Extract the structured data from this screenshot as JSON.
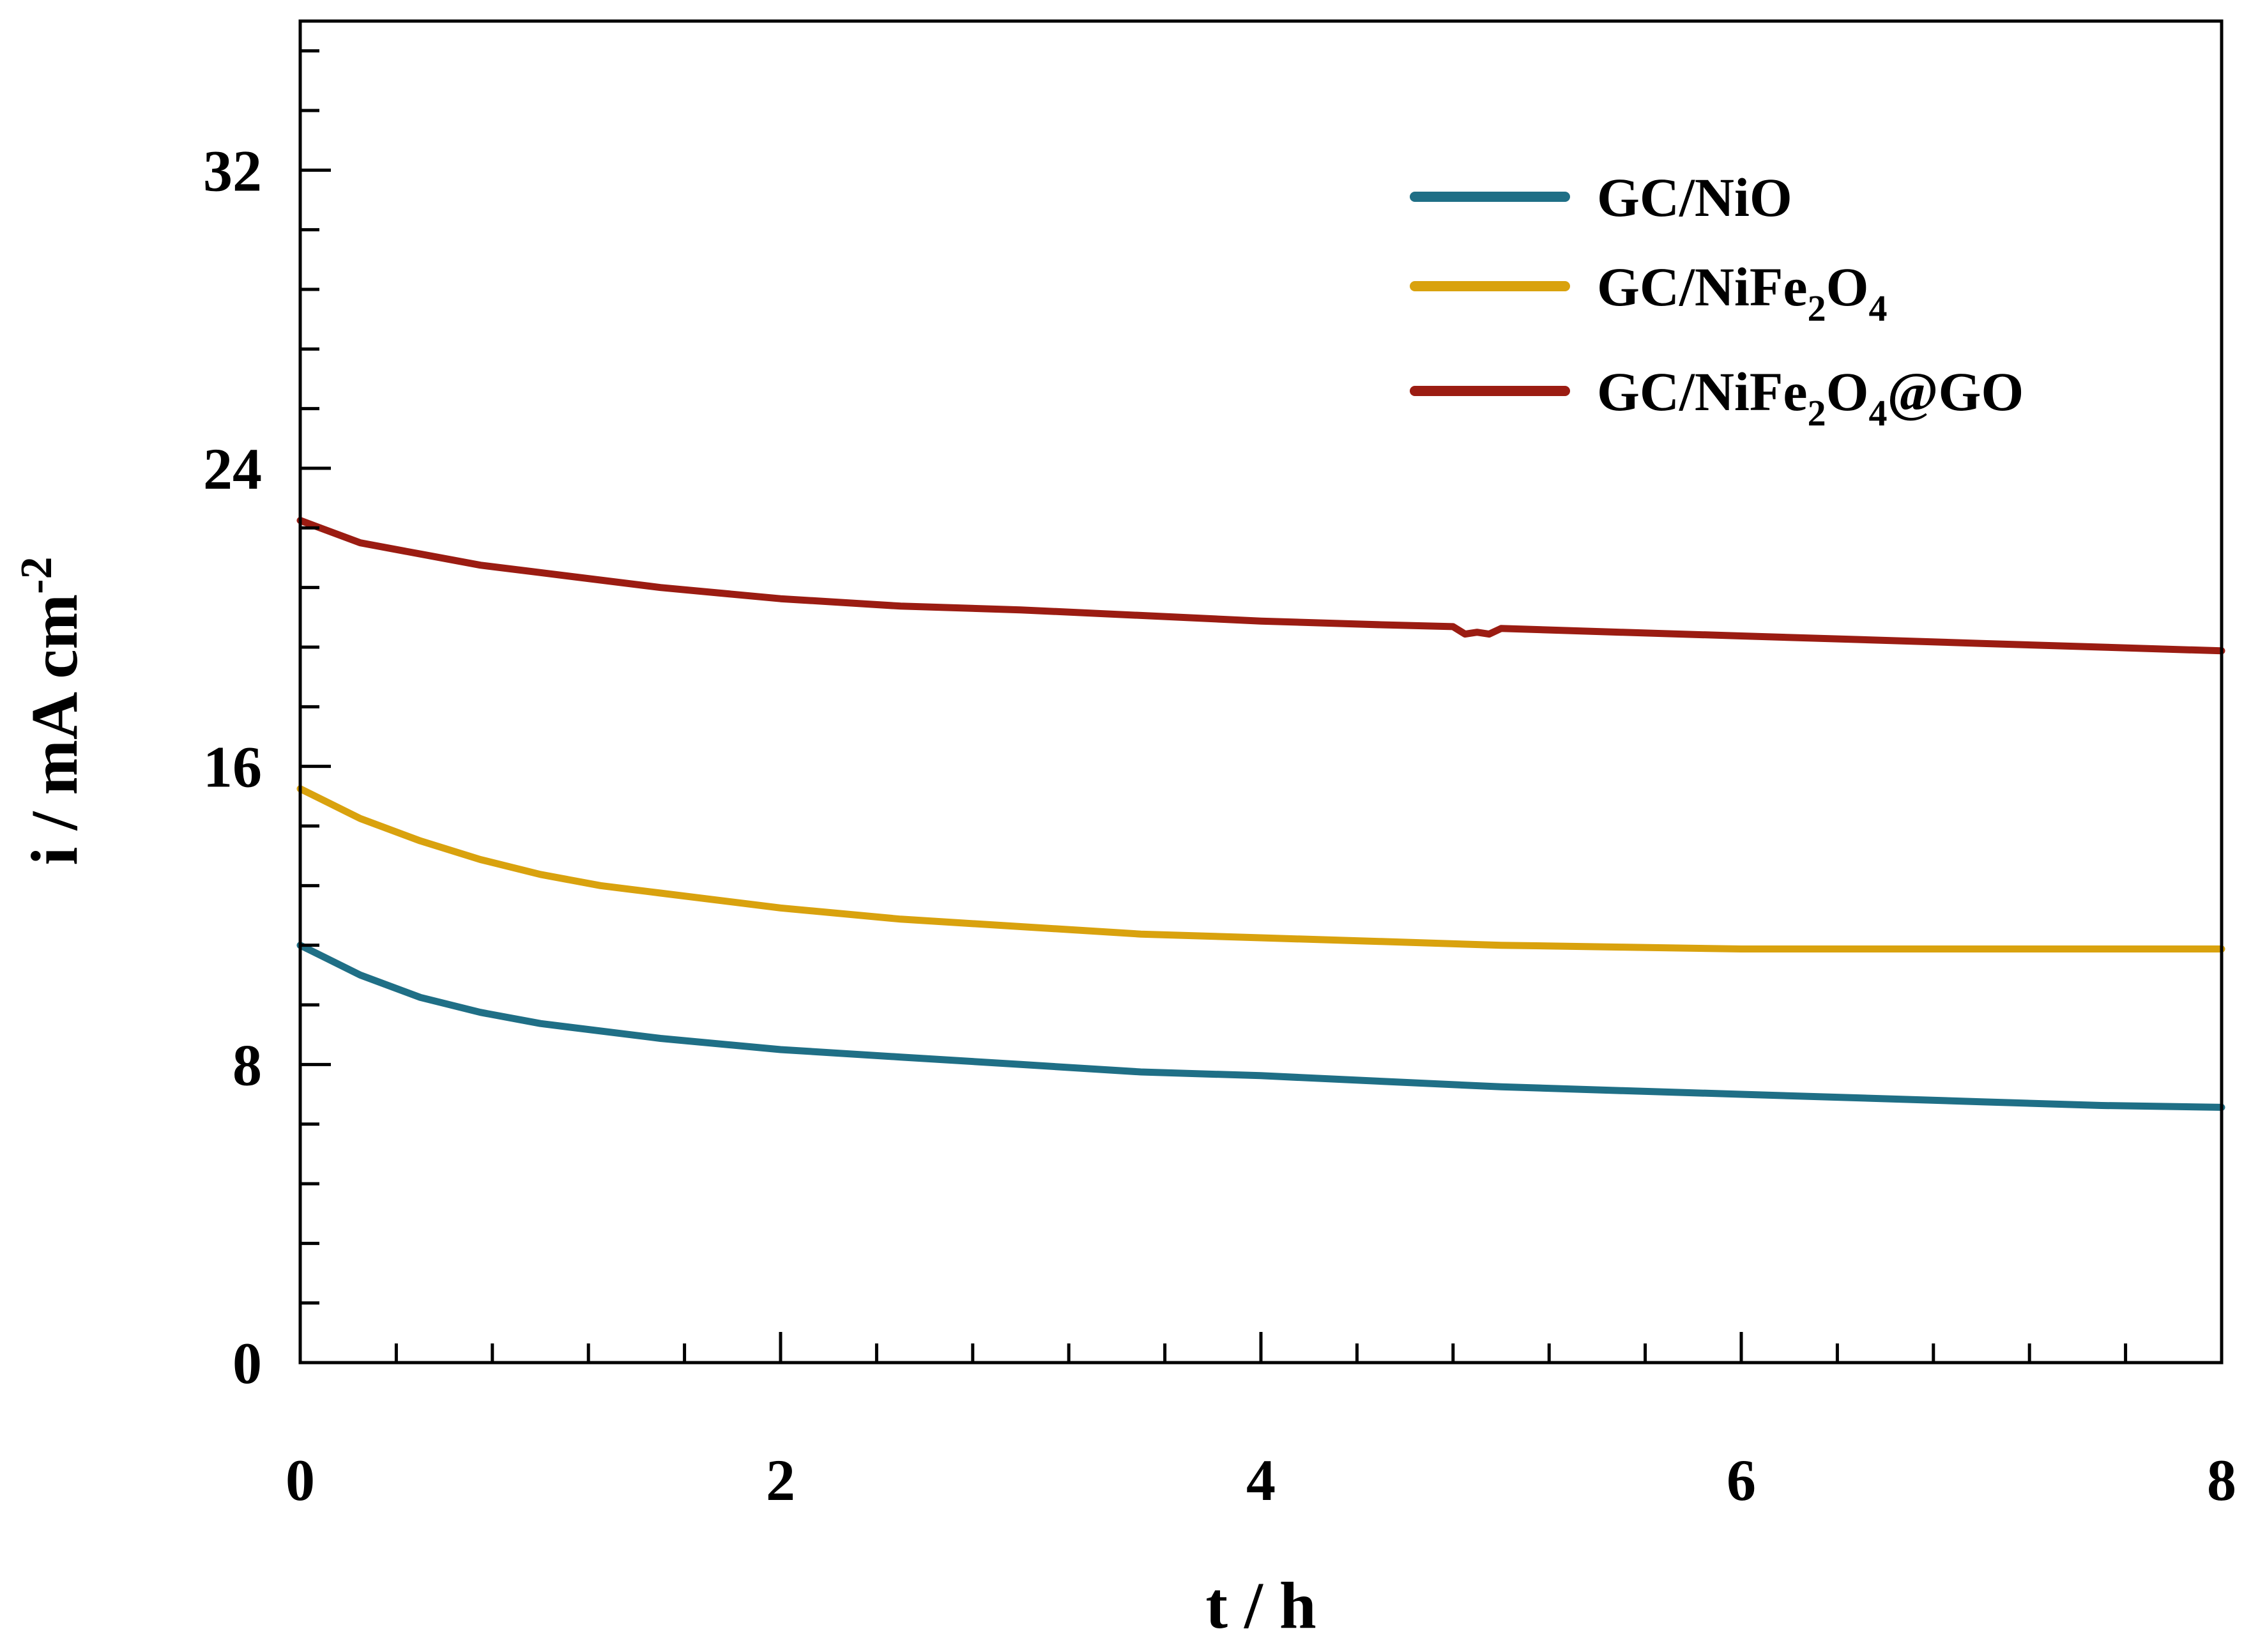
{
  "chart_data": {
    "type": "line",
    "title": "",
    "xlabel": "t / h",
    "ylabel": {
      "main": "i / mA cm",
      "superscript": "-2"
    },
    "xlim": [
      0,
      8
    ],
    "ylim": [
      0,
      36
    ],
    "xticks": [
      0,
      2,
      4,
      6,
      8
    ],
    "xtick_labels": [
      "0",
      "2",
      "4",
      "6",
      "8"
    ],
    "x_minor_step": 0.4,
    "yticks": [
      0,
      8,
      16,
      24,
      32
    ],
    "ytick_labels": [
      "0",
      "8",
      "16",
      "24",
      "32"
    ],
    "y_minor_step": 1.6,
    "grid": false,
    "legend_position": "top-right",
    "series": [
      {
        "name": "GC/NiO",
        "legend": {
          "parts": [
            {
              "t": "GC/NiO"
            }
          ]
        },
        "color": "#1f6f86",
        "x": [
          0,
          0.25,
          0.5,
          0.75,
          1.0,
          1.5,
          2.0,
          2.5,
          3.0,
          3.5,
          4.0,
          4.5,
          5.0,
          5.5,
          6.0,
          6.5,
          7.0,
          7.5,
          8.0
        ],
        "y": [
          11.2,
          10.4,
          9.8,
          9.4,
          9.1,
          8.7,
          8.4,
          8.2,
          8.0,
          7.8,
          7.7,
          7.55,
          7.4,
          7.3,
          7.2,
          7.1,
          7.0,
          6.9,
          6.85
        ]
      },
      {
        "name": "GC/NiFe2O4",
        "legend": {
          "parts": [
            {
              "t": "GC/NiFe"
            },
            {
              "t": "2",
              "sub": true
            },
            {
              "t": "O"
            },
            {
              "t": "4",
              "sub": true
            }
          ]
        },
        "color": "#d9a20e",
        "x": [
          0,
          0.25,
          0.5,
          0.75,
          1.0,
          1.25,
          1.5,
          2.0,
          2.5,
          3.0,
          3.5,
          4.0,
          4.5,
          5.0,
          5.5,
          6.0,
          6.5,
          7.0,
          7.5,
          8.0
        ],
        "y": [
          15.4,
          14.6,
          14.0,
          13.5,
          13.1,
          12.8,
          12.6,
          12.2,
          11.9,
          11.7,
          11.5,
          11.4,
          11.3,
          11.2,
          11.15,
          11.1,
          11.1,
          11.1,
          11.1,
          11.1
        ]
      },
      {
        "name": "GC/NiFe2O4@GO",
        "legend": {
          "parts": [
            {
              "t": "GC/NiFe"
            },
            {
              "t": "2",
              "sub": true
            },
            {
              "t": "O"
            },
            {
              "t": "4",
              "sub": true
            },
            {
              "t": "@GO"
            }
          ]
        },
        "color": "#9b1c12",
        "x": [
          0,
          0.25,
          0.5,
          0.75,
          1.0,
          1.5,
          2.0,
          2.5,
          3.0,
          3.5,
          4.0,
          4.5,
          4.8,
          4.85,
          4.9,
          4.95,
          5.0,
          5.5,
          6.0,
          6.5,
          7.0,
          7.5,
          8.0
        ],
        "y": [
          22.6,
          22.0,
          21.7,
          21.4,
          21.2,
          20.8,
          20.5,
          20.3,
          20.2,
          20.05,
          19.9,
          19.8,
          19.75,
          19.55,
          19.6,
          19.55,
          19.7,
          19.6,
          19.5,
          19.4,
          19.3,
          19.2,
          19.1
        ]
      }
    ]
  }
}
